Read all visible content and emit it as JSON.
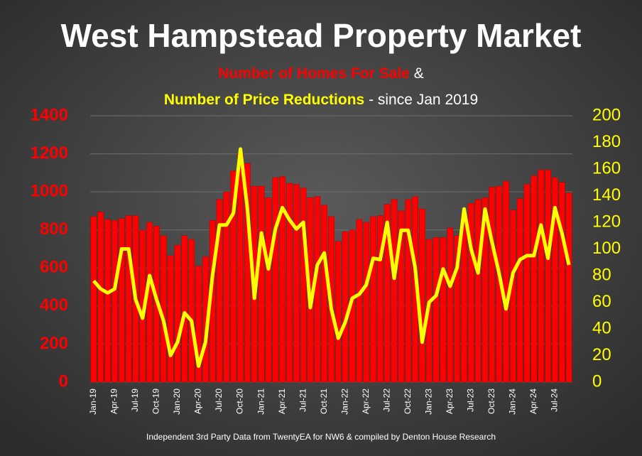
{
  "chart_data": {
    "type": "bar_line",
    "title": "West Hampstead Property Market",
    "subtitle": [
      "Number of Homes For Sale",
      "&",
      "Number of Price Reductions",
      "- since Jan 2019"
    ],
    "footnote": "Independent 3rd Party Data from TwentyEA for NW6 & compiled by Denton House Research",
    "categories": [
      "Jan-19",
      null,
      null,
      "Apr-19",
      null,
      null,
      "Jul-19",
      null,
      null,
      "Oct-19",
      null,
      null,
      "Jan-20",
      null,
      null,
      "Apr-20",
      null,
      null,
      "Jul-20",
      null,
      null,
      "Oct-20",
      null,
      null,
      "Jan-21",
      null,
      null,
      "Apr-21",
      null,
      null,
      "Jul-21",
      null,
      null,
      "Oct-21",
      null,
      null,
      "Jan-22",
      null,
      null,
      "Apr-22",
      null,
      null,
      "Jul-22",
      null,
      null,
      "Oct-22",
      null,
      null,
      "Jan-23",
      null,
      null,
      "Apr-23",
      null,
      null,
      "Jul-23",
      null,
      null,
      "Oct-23",
      null,
      null,
      "Jan-24",
      null,
      null,
      "Apr-24",
      null,
      null,
      "Jul-24",
      null,
      null
    ],
    "series": [
      {
        "name": "Number of Homes For Sale",
        "type": "bar",
        "color": "#ff0000",
        "values": [
          870,
          895,
          855,
          850,
          860,
          875,
          875,
          800,
          840,
          820,
          770,
          665,
          720,
          770,
          750,
          610,
          660,
          850,
          960,
          1000,
          1110,
          1200,
          1150,
          1030,
          1030,
          970,
          1075,
          1080,
          1045,
          1040,
          1020,
          970,
          975,
          930,
          870,
          740,
          790,
          800,
          855,
          840,
          870,
          875,
          935,
          960,
          900,
          960,
          975,
          910,
          750,
          760,
          760,
          810,
          770,
          880,
          940,
          960,
          970,
          1025,
          1030,
          1055,
          905,
          965,
          1040,
          1085,
          1115,
          1115,
          1075,
          1050,
          995
        ]
      },
      {
        "name": "Number of Price Reductions",
        "type": "line",
        "axis": "y2",
        "color": "#ffff00",
        "values": [
          76,
          70,
          67,
          70,
          100,
          100,
          62,
          48,
          80,
          62,
          46,
          20,
          30,
          52,
          46,
          12,
          30,
          80,
          118,
          118,
          127,
          175,
          130,
          63,
          112,
          85,
          115,
          131,
          122,
          115,
          120,
          56,
          88,
          97,
          55,
          33,
          45,
          63,
          66,
          73,
          93,
          92,
          120,
          78,
          114,
          114,
          86,
          30,
          60,
          65,
          85,
          72,
          86,
          130,
          100,
          82,
          130,
          105,
          82,
          55,
          82,
          92,
          95,
          95,
          118,
          93,
          131,
          112,
          88
        ]
      }
    ],
    "ylim": [
      0,
      1400
    ],
    "yticks": [
      0,
      200,
      400,
      600,
      800,
      1000,
      1200,
      1400
    ],
    "y2lim": [
      0,
      200
    ],
    "y2ticks": [
      0,
      20,
      40,
      60,
      80,
      100,
      120,
      140,
      160,
      180,
      200
    ],
    "grid": true
  }
}
